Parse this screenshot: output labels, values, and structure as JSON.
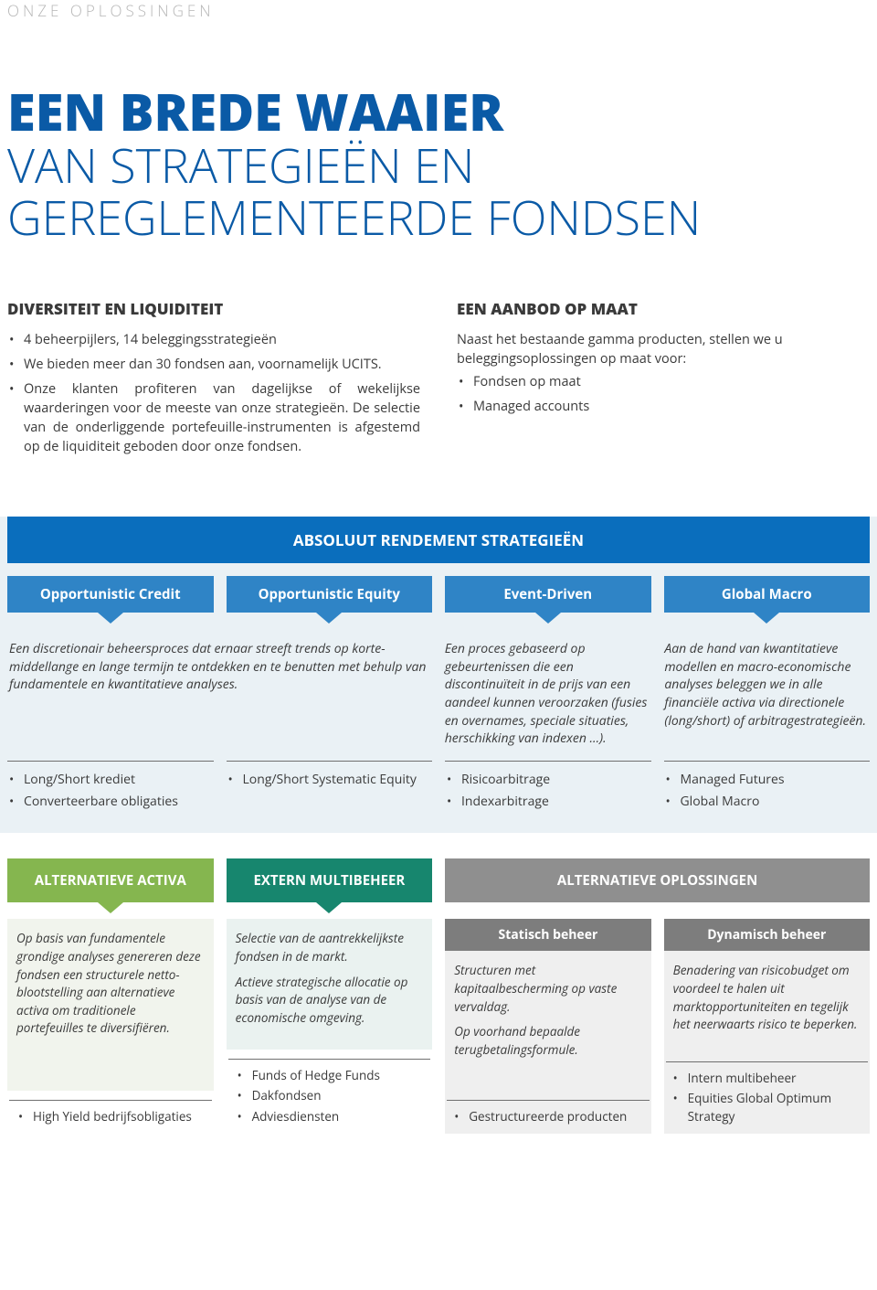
{
  "eyebrow": "ONZE OPLOSSINGEN",
  "headline": {
    "line1": "EEN BREDE WAAIER",
    "line2": "VAN STRATEGIEËN EN",
    "line3": "GEREGLEMENTEERDE FONDSEN"
  },
  "intro": {
    "left": {
      "title": "DIVERSITEIT EN LIQUIDITEIT",
      "b1": "4 beheerpijlers, 14 beleggingsstrategieën",
      "b2": "We bieden meer dan 30 fondsen aan, voornamelijk UCITS.",
      "b3": "Onze klanten profiteren van dagelijkse of wekelijkse waarderingen voor de meeste van onze strategieën. De selectie van de onderliggende portefeuille-instrumenten is afgestemd op de liquiditeit geboden door onze fondsen."
    },
    "right": {
      "title": "EEN AANBOD OP MAAT",
      "lead": "Naast het bestaande gamma producten, stellen we u beleggingsoplossingen op maat voor:",
      "b1": "Fondsen op maat",
      "b2": "Managed accounts"
    }
  },
  "band": {
    "title": "ABSOLUUT RENDEMENT STRATEGIEËN",
    "tabs": {
      "t1": "Opportunistic Credit",
      "t2": "Opportunistic Equity",
      "t3": "Event-Driven",
      "t4": "Global Macro"
    },
    "desc": {
      "d12": "Een discretionair beheersproces dat ernaar streeft trends op korte-middellange en lange termijn te ontdekken en te benutten met behulp van fundamentele en kwantitatieve analyses.",
      "d3": "Een proces gebaseerd op gebeurtenissen die een discontinuïteit in de prijs van een aandeel kunnen veroorzaken (fusies en overnames, speciale situaties, herschikking van indexen …).",
      "d4": "Aan de hand van kwantitatieve modellen en macro-economische analyses beleggen we in alle financiële activa via directionele (long/short) of arbitragestrategieën."
    },
    "lists": {
      "c1a": "Long/Short krediet",
      "c1b": "Converteerbare obligaties",
      "c2a": "Long/Short Systematic Equity",
      "c3a": "Risicoarbitrage",
      "c3b": "Indexarbitrage",
      "c4a": "Managed Futures",
      "c4b": "Global Macro"
    }
  },
  "lower": {
    "g1": {
      "title": "ALTERNATIEVE ACTIVA",
      "desc": "Op basis van fundamentele grondige analyses genereren deze fondsen een structurele netto-blootstelling aan alternatieve activa om traditionele portefeuilles te diversifiëren.",
      "i1": "High Yield bedrijfsobligaties"
    },
    "g2": {
      "title": "EXTERN MULTIBEHEER",
      "p1": "Selectie van de aantrekkelijkste fondsen in de markt.",
      "p2": "Actieve strategische allocatie op basis van de analyse van de economische omgeving.",
      "i1": "Funds of Hedge Funds",
      "i2": "Dakfondsen",
      "i3": "Adviesdiensten"
    },
    "g3": {
      "title": "ALTERNATIEVE OPLOSSINGEN",
      "s1": {
        "title": "Statisch beheer",
        "p1": "Structuren met kapitaalbescherming op vaste vervaldag.",
        "p2": "Op voorhand bepaalde terugbetalingsformule.",
        "i1": "Gestructureerde producten"
      },
      "s2": {
        "title": "Dynamisch beheer",
        "p1": "Benadering van risicobudget om voordeel te halen uit marktopportuniteiten en tegelijk het neerwaarts risico te beperken.",
        "i1": "Intern multibeheer",
        "i2": "Equities Global Optimum Strategy"
      }
    }
  }
}
